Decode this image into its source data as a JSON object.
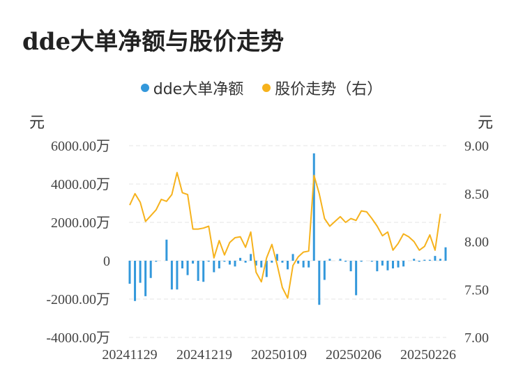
{
  "title": "dde大单净额与股价走势",
  "legend": {
    "bars_label": "dde大单净额",
    "line_label": "股价走势（右）"
  },
  "units": {
    "left": "元",
    "right": "元"
  },
  "colors": {
    "bars": "#3398DB",
    "line": "#F6B21C",
    "grid": "#E6E6E6"
  },
  "chart_data": {
    "type": "bar+line",
    "x_ticks": [
      "20241129",
      "20241219",
      "20250109",
      "20250206",
      "20250226"
    ],
    "left_axis": {
      "ticks": [
        "6000.00万",
        "4000.00万",
        "2000.00万",
        "0",
        "-2000.00万",
        "-4000.00万"
      ],
      "min": -4000,
      "max": 6000
    },
    "right_axis": {
      "ticks": [
        "9.00",
        "8.50",
        "8.00",
        "7.50",
        "7.00"
      ],
      "min": 7.0,
      "max": 9.0
    },
    "bars": [
      -1200,
      -2100,
      -1150,
      -1850,
      -900,
      -50,
      0,
      1100,
      -1500,
      -1500,
      -400,
      -750,
      -150,
      -1050,
      -1100,
      -50,
      -600,
      -400,
      -50,
      -200,
      -300,
      150,
      -100,
      350,
      -250,
      -350,
      -850,
      -100,
      350,
      -100,
      -450,
      350,
      -150,
      -350,
      -350,
      5600,
      -2300,
      -1000,
      100,
      0,
      100,
      -50,
      -550,
      -1800,
      -50,
      0,
      -50,
      -550,
      -250,
      -500,
      -400,
      -350,
      -300,
      0,
      100,
      -50,
      50,
      50,
      250,
      100,
      700
    ],
    "prices": [
      8.38,
      8.5,
      8.41,
      8.21,
      8.27,
      8.33,
      8.44,
      8.42,
      8.49,
      8.72,
      8.51,
      8.49,
      8.13,
      8.13,
      8.14,
      8.16,
      7.83,
      8.01,
      7.86,
      7.99,
      8.04,
      8.05,
      7.94,
      8.1,
      7.68,
      7.58,
      7.83,
      7.97,
      7.76,
      7.52,
      7.41,
      7.75,
      7.84,
      7.89,
      7.9,
      8.69,
      8.5,
      8.24,
      8.16,
      8.21,
      8.26,
      8.2,
      8.24,
      8.22,
      8.32,
      8.31,
      8.24,
      8.16,
      8.06,
      8.1,
      7.91,
      7.98,
      8.08,
      8.05,
      8.0,
      7.91,
      7.95,
      8.07,
      7.91,
      8.29
    ]
  }
}
